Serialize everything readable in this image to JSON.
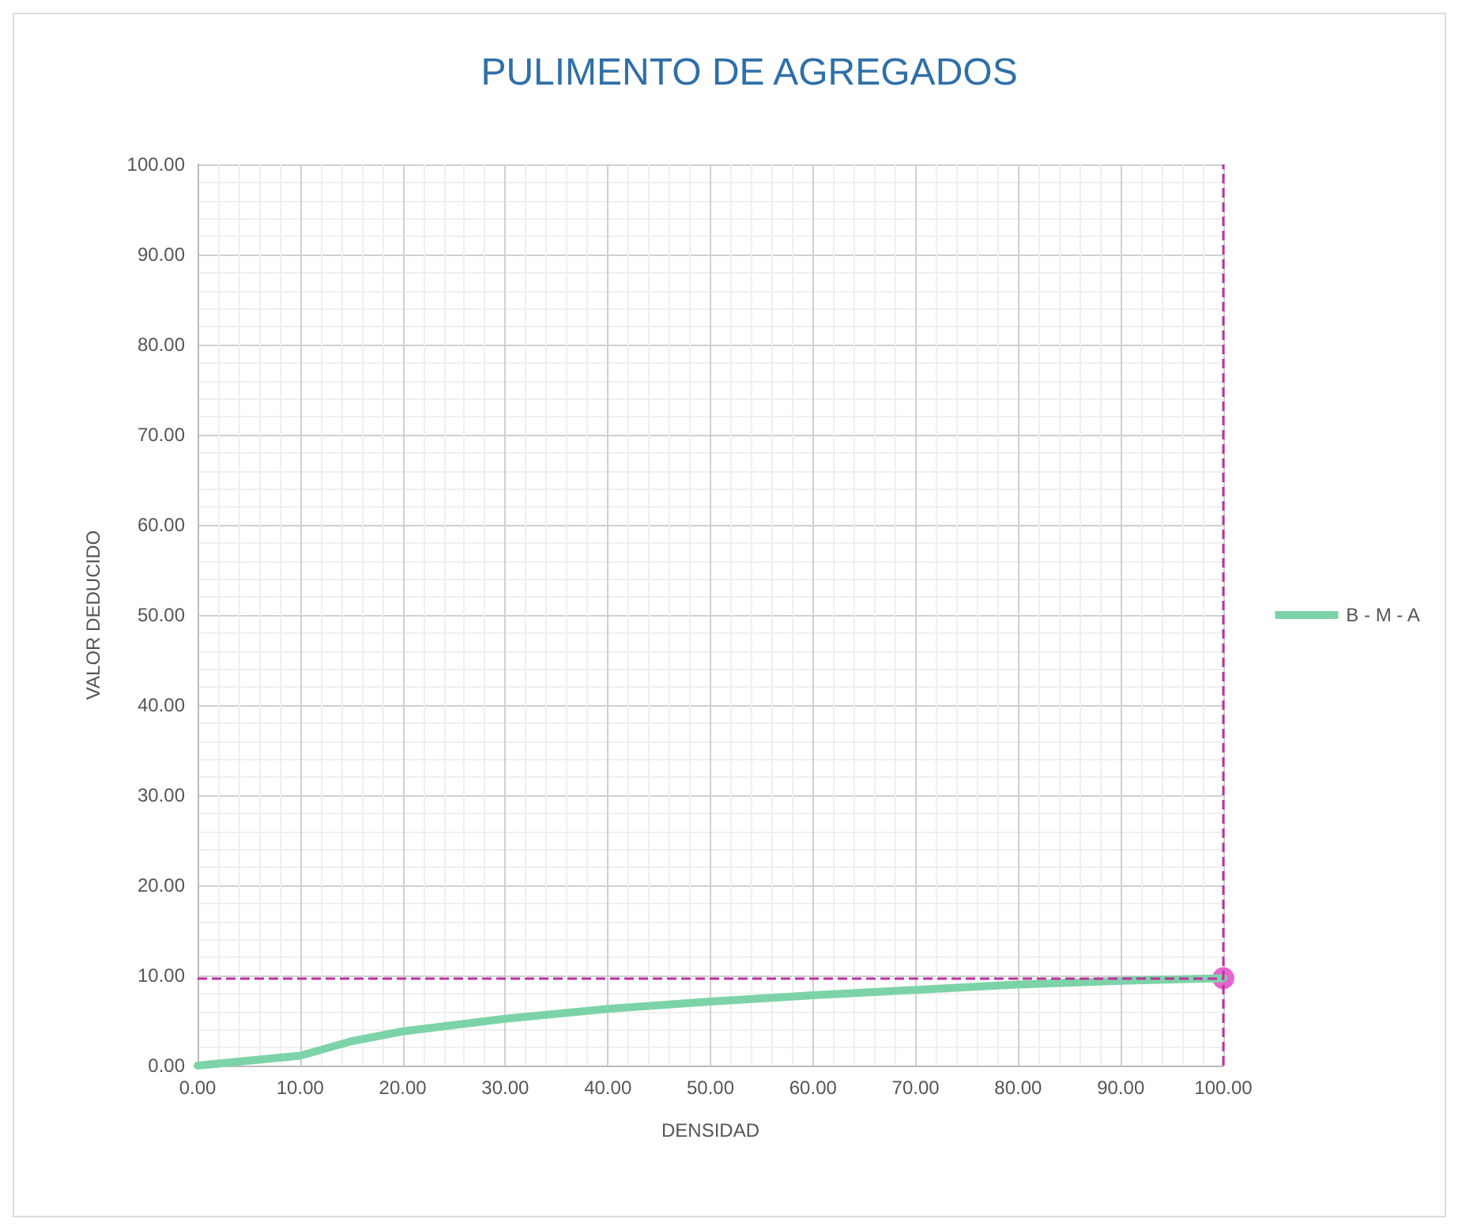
{
  "chart_data": {
    "type": "line",
    "title": "PULIMENTO DE AGREGADOS",
    "xlabel": "DENSIDAD",
    "ylabel": "VALOR DEDUCIDO",
    "series": [
      {
        "name": "B - M - A",
        "color": "#7dd3a8",
        "x": [
          0,
          10,
          15,
          20,
          30,
          40,
          50,
          60,
          70,
          80,
          90,
          100
        ],
        "values": [
          0,
          1.1,
          2.7,
          3.8,
          5.2,
          6.3,
          7.1,
          7.8,
          8.4,
          9.0,
          9.4,
          9.7
        ],
        "marker": "none"
      },
      {
        "type": "scatter",
        "color": "#e040c0",
        "x": [
          100
        ],
        "values": [
          9.7
        ],
        "marker": "circle"
      }
    ],
    "ref_lines": [
      {
        "axis": "y",
        "value": 9.7,
        "color": "#c030a0",
        "line_style": "dashed"
      },
      {
        "axis": "x",
        "value": 100,
        "color": "#c030a0",
        "line_style": "dashed"
      }
    ],
    "xlim": [
      0,
      100
    ],
    "xticks": [
      {
        "value": 0,
        "label": "0.00"
      },
      {
        "value": 10,
        "label": "10.00"
      },
      {
        "value": 20,
        "label": "20.00"
      },
      {
        "value": 30,
        "label": "30.00"
      },
      {
        "value": 40,
        "label": "40.00"
      },
      {
        "value": 50,
        "label": "50.00"
      },
      {
        "value": 60,
        "label": "60.00"
      },
      {
        "value": 70,
        "label": "70.00"
      },
      {
        "value": 80,
        "label": "80.00"
      },
      {
        "value": 90,
        "label": "90.00"
      },
      {
        "value": 100,
        "label": "100.00"
      }
    ],
    "ylim": [
      0,
      100
    ],
    "yticks": [
      {
        "value": 0,
        "label": "0.00"
      },
      {
        "value": 10,
        "label": "10.00"
      },
      {
        "value": 20,
        "label": "20.00"
      },
      {
        "value": 30,
        "label": "30.00"
      },
      {
        "value": 40,
        "label": "40.00"
      },
      {
        "value": 50,
        "label": "50.00"
      },
      {
        "value": 60,
        "label": "60.00"
      },
      {
        "value": 70,
        "label": "70.00"
      },
      {
        "value": 80,
        "label": "80.00"
      },
      {
        "value": 90,
        "label": "90.00"
      },
      {
        "value": 100,
        "label": "100.00"
      }
    ],
    "grid": true,
    "legend": "right",
    "line_style": "solid"
  }
}
